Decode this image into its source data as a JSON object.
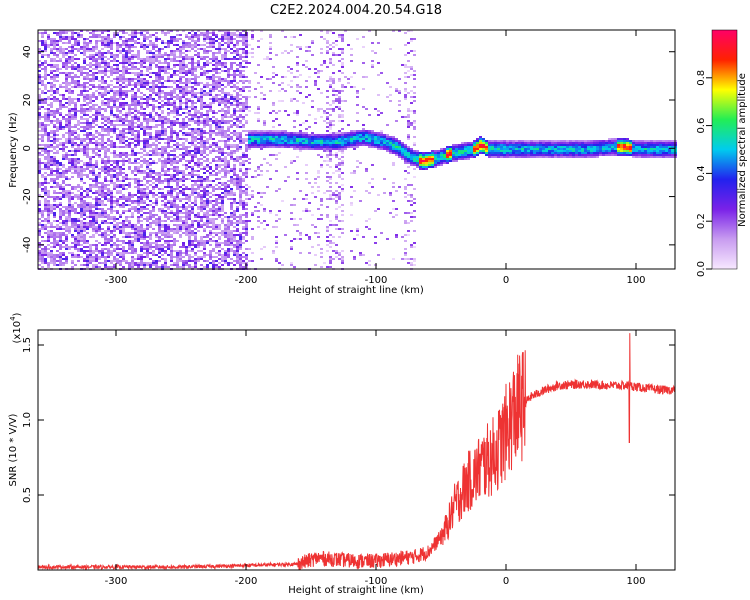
{
  "page_title": "C2E2.2024.004.20.54.G18",
  "colors": {
    "snr_line": "#ee3333",
    "colormap": [
      "#f7e8ff",
      "#c89cf0",
      "#7a22e8",
      "#2222ee",
      "#00ccee",
      "#22ee55",
      "#ffff00",
      "#ff2200",
      "#ff0066"
    ]
  },
  "chart_data": [
    {
      "type": "heatmap",
      "title": "C2E2.2024.004.20.54.G18",
      "xlabel": "Height of straight line (km)",
      "ylabel": "Frequency (Hz)",
      "xlim": [
        -360,
        130
      ],
      "ylim": [
        -50,
        49
      ],
      "x_ticks": [
        -300,
        -200,
        -100,
        0,
        100
      ],
      "x_tick_labels": [
        "-300",
        "-200",
        "-100",
        "0",
        "100"
      ],
      "y_ticks": [
        -40,
        -20,
        0,
        20,
        40
      ],
      "y_tick_labels": [
        "-40",
        "-20",
        "0",
        "20",
        "40"
      ],
      "colorbar": {
        "label": "Normalized spectral amplitude",
        "range": [
          0,
          1
        ],
        "ticks": [
          0,
          0.2,
          0.4,
          0.6,
          0.8
        ],
        "tick_labels": [
          "0.0",
          "0.2",
          "0.4",
          "0.6",
          "0.8"
        ]
      },
      "ridge": {
        "x": [
          -195,
          -170,
          -150,
          -130,
          -110,
          -95,
          -85,
          -75,
          -65,
          -55,
          -45,
          -35,
          -25,
          -20,
          -15,
          -10,
          0,
          20,
          60,
          85,
          90,
          100,
          130
        ],
        "freq_hz": [
          4,
          4,
          3,
          3,
          5,
          3,
          1,
          -3,
          -5,
          -4,
          -2,
          -1,
          0,
          2,
          0,
          0,
          0,
          0,
          0,
          1,
          1,
          0,
          0
        ]
      }
    },
    {
      "type": "line",
      "title": "",
      "xlabel": "Height of straight line (km)",
      "ylabel": "SNR (10 * V/V)",
      "y_scale_label": "(x10",
      "y_scale_exp": "4",
      "xlim": [
        -360,
        130
      ],
      "ylim": [
        0,
        1.6
      ],
      "x_ticks": [
        -300,
        -200,
        -100,
        0,
        100
      ],
      "x_tick_labels": [
        "-300",
        "-200",
        "-100",
        "0",
        "100"
      ],
      "y_ticks": [
        0.5,
        1.0,
        1.5
      ],
      "y_tick_labels": [
        "0.5",
        "1.0",
        "1.5"
      ],
      "series": [
        {
          "x": [
            -360,
            -300,
            -250,
            -200,
            -160,
            -145,
            -130,
            -115,
            -100,
            -90,
            -80,
            -70,
            -60,
            -50,
            -45,
            -40,
            -35,
            -30,
            -25,
            -20,
            -15,
            -10,
            -5,
            0,
            5,
            10,
            15,
            20,
            30,
            40,
            60,
            80,
            90,
            95,
            100,
            110,
            120,
            130
          ],
          "y": [
            0.02,
            0.02,
            0.02,
            0.03,
            0.04,
            0.08,
            0.07,
            0.06,
            0.06,
            0.07,
            0.08,
            0.09,
            0.12,
            0.22,
            0.3,
            0.42,
            0.5,
            0.58,
            0.62,
            0.68,
            0.72,
            0.76,
            0.82,
            0.92,
            1.02,
            1.08,
            1.12,
            1.16,
            1.2,
            1.23,
            1.24,
            1.23,
            1.23,
            1.23,
            1.22,
            1.21,
            1.2,
            1.2
          ]
        }
      ]
    }
  ]
}
